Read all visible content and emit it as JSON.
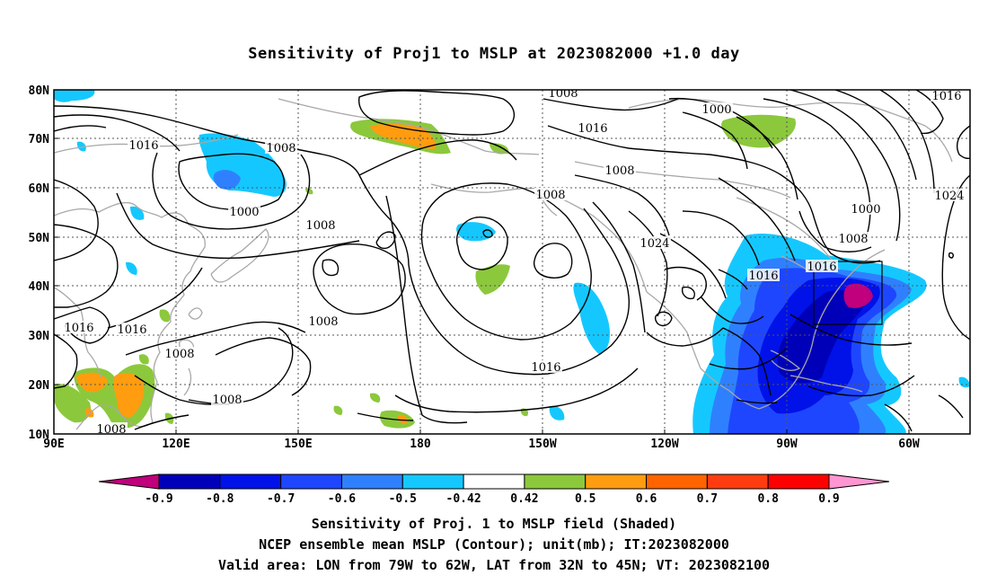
{
  "title": "Sensitivity of Proj1 to MSLP at 2023082000 +1.0 day",
  "map": {
    "lon_range": "90E to 45W",
    "lat_range": "10N to 80N",
    "lon_labels": [
      "90E",
      "120E",
      "150E",
      "180",
      "150W",
      "120W",
      "90W",
      "60W"
    ],
    "lat_labels": [
      "10N",
      "20N",
      "30N",
      "40N",
      "50N",
      "60N",
      "70N",
      "80N"
    ],
    "grid": "dotted",
    "contour_labels": [
      "1008",
      "1016",
      "1008",
      "1016",
      "1000",
      "1008",
      "1016",
      "1016",
      "1008",
      "1008",
      "1008",
      "1008",
      "1008",
      "1024",
      "1016",
      "1008",
      "1016",
      "1016",
      "1000",
      "1000",
      "1008",
      "1024",
      "1016"
    ],
    "valid_box": {
      "lon_w": "79W",
      "lon_e": "62W",
      "lat_s": "32N",
      "lat_n": "45N"
    }
  },
  "colorbar": {
    "labels": [
      "-0.9",
      "-0.8",
      "-0.7",
      "-0.6",
      "-0.5",
      "-0.42",
      "0.42",
      "0.5",
      "0.6",
      "0.7",
      "0.8",
      "0.9"
    ],
    "colors": [
      "#c0007c",
      "#0000b8",
      "#0012e8",
      "#1e46ff",
      "#2f80ff",
      "#14c8ff",
      "#ffffff",
      "#8cc83c",
      "#ff9c10",
      "#ff6400",
      "#ff3c10",
      "#ff0000",
      "#ff96d2"
    ]
  },
  "captions": {
    "line1": "Sensitivity of Proj. 1 to MSLP field (Shaded)",
    "line2": "NCEP ensemble mean MSLP (Contour); unit(mb); IT:2023082000",
    "line3": "Valid area: LON from 79W to 62W, LAT from 32N to 45N; VT: 2023082100"
  }
}
